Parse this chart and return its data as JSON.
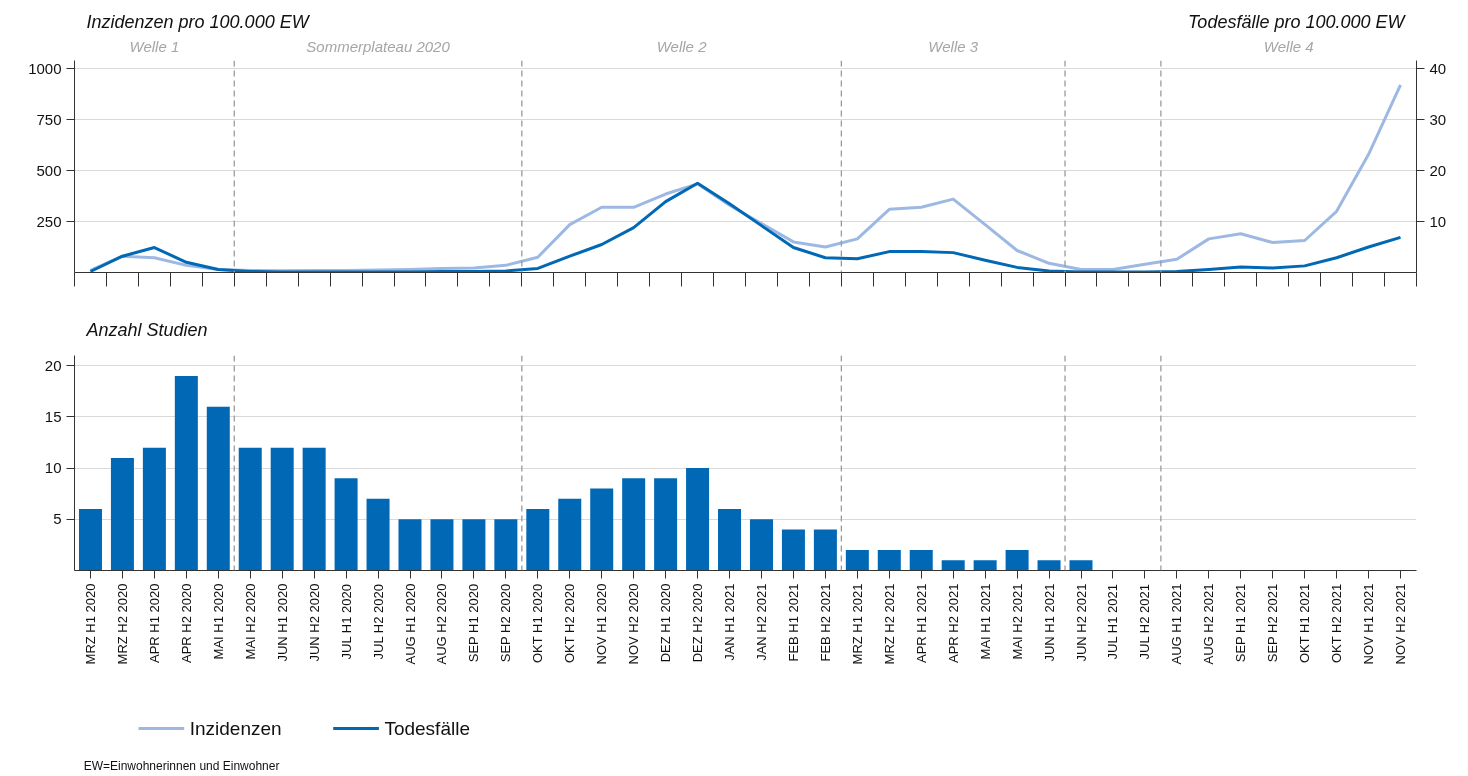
{
  "chart_data": [
    {
      "type": "line",
      "ylabel": "Inzidenzen pro 100.000 EW",
      "y2label": "Todesfälle pro 100.000 EW",
      "categories": [
        null,
        null,
        null,
        null,
        null,
        null,
        null,
        null,
        null,
        null,
        null,
        null,
        null,
        null,
        null,
        null,
        null,
        null,
        null,
        null,
        null,
        null,
        null,
        null,
        null,
        null,
        null,
        null,
        null,
        null,
        null,
        null,
        null,
        null,
        null,
        null,
        null,
        null,
        null,
        null,
        null,
        null
      ],
      "series": [
        {
          "name": "Inzidenzen",
          "color": "#9db9e3",
          "values": [
            10,
            80,
            72,
            35,
            15,
            10,
            8,
            10,
            10,
            12,
            15,
            20,
            22,
            35,
            75,
            235,
            320,
            320,
            385,
            435,
            330,
            240,
            150,
            125,
            165,
            310,
            320,
            360,
            235,
            108,
            45,
            15,
            15,
            40,
            65,
            165,
            190,
            147,
            157,
            300,
            580,
            920
          ]
        },
        {
          "name": "Todesfälle",
          "color": "#0068b4",
          "axis": "y2",
          "values": [
            0.2,
            3.2,
            4.9,
            2.0,
            0.6,
            0.2,
            0.1,
            0.1,
            0.1,
            0.1,
            0.1,
            0.2,
            0.2,
            0.3,
            0.8,
            3.2,
            5.5,
            8.8,
            13.9,
            17.5,
            13.5,
            9.2,
            4.9,
            2.9,
            2.7,
            4.1,
            4.1,
            3.9,
            2.4,
            1.0,
            0.3,
            0.1,
            0.1,
            0.1,
            0.2,
            0.6,
            1.1,
            0.9,
            1.3,
            2.9,
            5.0,
            6.9
          ]
        }
      ],
      "ylim": [
        0,
        1040
      ],
      "yticks": [
        250,
        500,
        750,
        1000
      ],
      "y2lim": [
        0,
        41.6
      ],
      "y2ticks": [
        10,
        20,
        30,
        40
      ],
      "grid": "y",
      "tick_labels": "y",
      "legend": "bottom",
      "annotations": [
        "Welle 1",
        "Sommerplateau 2020",
        "Welle 2",
        "Welle 3",
        "Welle 4"
      ]
    },
    {
      "type": "bar",
      "ylabel": "Anzahl Studien",
      "categories": [
        "MRZ H1 2020",
        "MRZ H2 2020",
        "APR H1 2020",
        "APR H2 2020",
        "MAI H1 2020",
        "MAI H2 2020",
        "JUN H1 2020",
        "JUN H2 2020",
        "JUL H1 2020",
        "JUL H2 2020",
        "AUG H1 2020",
        "AUG H2 2020",
        "SEP H1 2020",
        "SEP H2 2020",
        "OKT H1 2020",
        "OKT H2 2020",
        "NOV H1 2020",
        "NOV H2 2020",
        "DEZ H1 2020",
        "DEZ H2 2020",
        "JAN H1 2021",
        "JAN H2 2021",
        "FEB H1 2021",
        "FEB H2 2021",
        "MRZ H1 2021",
        "MRZ H2 2021",
        "APR H1 2021",
        "APR H2 2021",
        "MAI H1 2021",
        "MAI H2 2021",
        "JUN H1 2021",
        "JUN H2 2021",
        "JUL H1 2021",
        "JUL H2 2021",
        "AUG H1 2021",
        "AUG H2 2021",
        "SEP H1 2021",
        "SEP H2 2021",
        "OKT H1 2021",
        "OKT H2 2021",
        "NOV H1 2021",
        "NOV H2 2021"
      ],
      "values": [
        6,
        11,
        12,
        19,
        16,
        12,
        12,
        12,
        9,
        7,
        5,
        5,
        5,
        5,
        6,
        7,
        8,
        9,
        9,
        10,
        6,
        5,
        4,
        4,
        2,
        2,
        2,
        1,
        1,
        2,
        1,
        1,
        null,
        null,
        null,
        null,
        null,
        null,
        null,
        null,
        null,
        null
      ],
      "color": "#0068b4",
      "ylim": [
        0,
        21
      ],
      "yticks": [
        5,
        10,
        15,
        20
      ],
      "grid": "y",
      "annotations": [
        "EW=Einwohnerinnen und Einwohner"
      ]
    }
  ]
}
